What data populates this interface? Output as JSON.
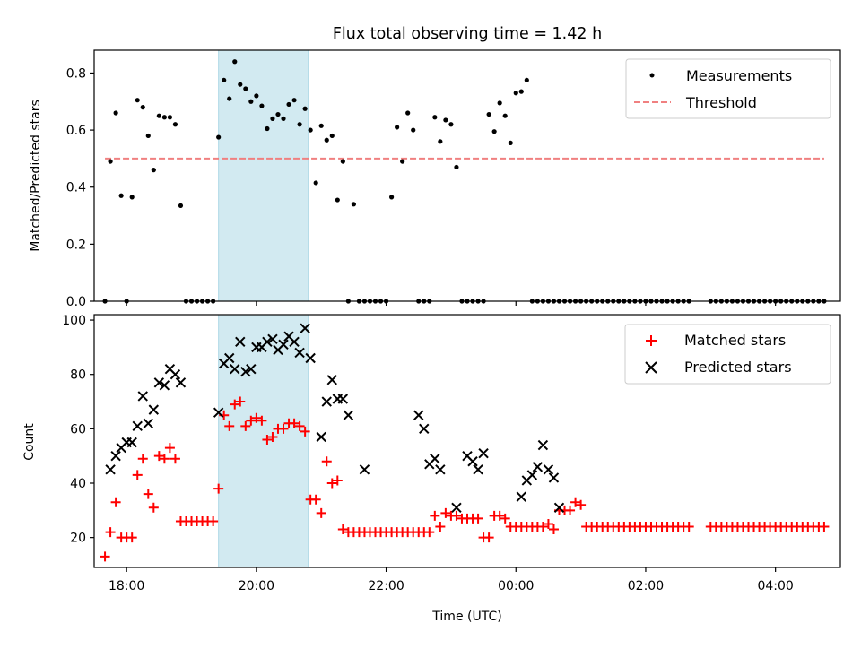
{
  "colors": {
    "measurement": "#000000",
    "threshold": "#f08080",
    "matched": "#ff0000",
    "predicted": "#000000",
    "shade": "#add8e6"
  },
  "chart_data": [
    {
      "type": "scatter",
      "title": "Flux total observing time = 1.42 h",
      "xlabel": "",
      "ylabel": "Matched/Predicted stars",
      "xlim": [
        "17:30",
        "05:00"
      ],
      "ylim": [
        0,
        0.88
      ],
      "yticks": [
        "0.0",
        "0.2",
        "0.4",
        "0.6",
        "0.8"
      ],
      "shaded_interval": [
        "19:25",
        "20:48"
      ],
      "legend_position": "upper right",
      "legend": [
        "Measurements",
        "Threshold"
      ],
      "threshold": {
        "name": "Threshold",
        "value": 0.5,
        "x_range": [
          "17:40",
          "04:45"
        ]
      },
      "series": [
        {
          "name": "Measurements",
          "marker": "dot",
          "x": [
            "17:40",
            "17:45",
            "17:50",
            "17:55",
            "18:00",
            "18:05",
            "18:10",
            "18:15",
            "18:20",
            "18:25",
            "18:30",
            "18:35",
            "18:40",
            "18:45",
            "18:50",
            "18:55",
            "19:00",
            "19:05",
            "19:10",
            "19:15",
            "19:20",
            "19:25",
            "19:30",
            "19:35",
            "19:40",
            "19:45",
            "19:50",
            "19:55",
            "20:00",
            "20:05",
            "20:10",
            "20:15",
            "20:20",
            "20:25",
            "20:30",
            "20:35",
            "20:40",
            "20:45",
            "20:50",
            "20:55",
            "21:00",
            "21:05",
            "21:10",
            "21:15",
            "21:20",
            "21:25",
            "21:30",
            "21:35",
            "21:40",
            "21:45",
            "21:50",
            "21:55",
            "22:00",
            "22:05",
            "22:10",
            "22:15",
            "22:20",
            "22:25",
            "22:30",
            "22:35",
            "22:40",
            "22:45",
            "22:50",
            "22:55",
            "23:00",
            "23:05",
            "23:10",
            "23:15",
            "23:20",
            "23:25",
            "23:30",
            "23:35",
            "23:40",
            "23:45",
            "23:50",
            "23:55",
            "00:00",
            "00:05",
            "00:10",
            "00:15",
            "00:20",
            "00:25",
            "00:30",
            "00:35",
            "00:40",
            "00:45",
            "00:50",
            "00:55",
            "01:00",
            "01:05",
            "01:10",
            "01:15",
            "01:20",
            "01:25",
            "01:30",
            "01:35",
            "01:40",
            "01:45",
            "01:50",
            "01:55",
            "02:00",
            "02:05",
            "02:10",
            "02:15",
            "02:20",
            "02:25",
            "02:30",
            "02:35",
            "02:40",
            "03:00",
            "03:05",
            "03:10",
            "03:15",
            "03:20",
            "03:25",
            "03:30",
            "03:35",
            "03:40",
            "03:45",
            "03:50",
            "03:55",
            "04:00",
            "04:05",
            "04:10",
            "04:15",
            "04:20",
            "04:25",
            "04:30",
            "04:35",
            "04:40",
            "04:45"
          ],
          "y": [
            0.0,
            0.49,
            0.66,
            0.37,
            0.0,
            0.365,
            0.705,
            0.68,
            0.58,
            0.46,
            0.65,
            0.645,
            0.645,
            0.62,
            0.335,
            0.0,
            0.0,
            0.0,
            0.0,
            0.0,
            0.0,
            0.575,
            0.775,
            0.71,
            0.84,
            0.76,
            0.745,
            0.7,
            0.72,
            0.685,
            0.605,
            0.64,
            0.655,
            0.64,
            0.69,
            0.705,
            0.62,
            0.675,
            0.6,
            0.415,
            0.615,
            0.565,
            0.58,
            0.355,
            0.49,
            0.0,
            0.34,
            0.0,
            0.0,
            0.0,
            0.0,
            0.0,
            0.0,
            0.365,
            0.61,
            0.49,
            0.66,
            0.6,
            0.0,
            0.0,
            0.0,
            0.645,
            0.56,
            0.635,
            0.62,
            0.47,
            0.0,
            0.0,
            0.0,
            0.0,
            0.0,
            0.655,
            0.595,
            0.695,
            0.65,
            0.555,
            0.73,
            0.735,
            0.775,
            0.0,
            0.0,
            0.0,
            0.0,
            0.0,
            0.0,
            0.0,
            0.0,
            0.0,
            0.0,
            0.0,
            0.0,
            0.0,
            0.0,
            0.0,
            0.0,
            0.0,
            0.0,
            0.0,
            0.0,
            0.0,
            0.0,
            0.0,
            0.0,
            0.0,
            0.0,
            0.0,
            0.0,
            0.0,
            0.0,
            0.0,
            0.0,
            0.0,
            0.0,
            0.0,
            0.0,
            0.0,
            0.0,
            0.0,
            0.0,
            0.0,
            0.0,
            0.0,
            0.0,
            0.0,
            0.0,
            0.0,
            0.0,
            0.0,
            0.0,
            0.0,
            0.0
          ]
        }
      ]
    },
    {
      "type": "scatter",
      "title": "",
      "xlabel": "Time (UTC)",
      "ylabel": "Count",
      "xlim": [
        "17:30",
        "05:00"
      ],
      "ylim": [
        9,
        102
      ],
      "yticks": [
        "20",
        "40",
        "60",
        "80",
        "100"
      ],
      "xticks": [
        "18:00",
        "20:00",
        "22:00",
        "00:00",
        "02:00",
        "04:00"
      ],
      "shaded_interval": [
        "19:25",
        "20:48"
      ],
      "legend_position": "upper right",
      "legend": [
        "Matched stars",
        "Predicted stars"
      ],
      "series": [
        {
          "name": "Matched stars",
          "marker": "plus",
          "x": [
            "17:40",
            "17:45",
            "17:50",
            "17:55",
            "18:00",
            "18:05",
            "18:10",
            "18:15",
            "18:20",
            "18:25",
            "18:30",
            "18:35",
            "18:40",
            "18:45",
            "18:50",
            "18:55",
            "19:00",
            "19:05",
            "19:10",
            "19:15",
            "19:20",
            "19:25",
            "19:30",
            "19:35",
            "19:40",
            "19:45",
            "19:50",
            "19:55",
            "20:00",
            "20:05",
            "20:10",
            "20:15",
            "20:20",
            "20:25",
            "20:30",
            "20:35",
            "20:40",
            "20:45",
            "20:50",
            "20:55",
            "21:00",
            "21:05",
            "21:10",
            "21:15",
            "21:20",
            "21:25",
            "21:30",
            "21:35",
            "21:40",
            "21:45",
            "21:50",
            "21:55",
            "22:00",
            "22:05",
            "22:10",
            "22:15",
            "22:20",
            "22:25",
            "22:30",
            "22:35",
            "22:40",
            "22:45",
            "22:50",
            "22:55",
            "23:00",
            "23:05",
            "23:10",
            "23:15",
            "23:20",
            "23:25",
            "23:30",
            "23:35",
            "23:40",
            "23:45",
            "23:50",
            "23:55",
            "00:00",
            "00:05",
            "00:10",
            "00:15",
            "00:20",
            "00:25",
            "00:30",
            "00:35",
            "00:40",
            "00:45",
            "00:50",
            "00:55",
            "01:00",
            "01:05",
            "01:10",
            "01:15",
            "01:20",
            "01:25",
            "01:30",
            "01:35",
            "01:40",
            "01:45",
            "01:50",
            "01:55",
            "02:00",
            "02:05",
            "02:10",
            "02:15",
            "02:20",
            "02:25",
            "02:30",
            "02:35",
            "02:40",
            "03:00",
            "03:05",
            "03:10",
            "03:15",
            "03:20",
            "03:25",
            "03:30",
            "03:35",
            "03:40",
            "03:45",
            "03:50",
            "03:55",
            "04:00",
            "04:05",
            "04:10",
            "04:15",
            "04:20",
            "04:25",
            "04:30",
            "04:35",
            "04:40",
            "04:45"
          ],
          "y": [
            13,
            22,
            33,
            20,
            20,
            20,
            43,
            49,
            36,
            31,
            50,
            49,
            53,
            49,
            26,
            26,
            26,
            26,
            26,
            26,
            26,
            38,
            65,
            61,
            69,
            70,
            61,
            63,
            64,
            63,
            56,
            57,
            60,
            60,
            62,
            62,
            61,
            59,
            34,
            34,
            29,
            48,
            40,
            41,
            23,
            22,
            22,
            22,
            22,
            22,
            22,
            22,
            22,
            22,
            22,
            22,
            22,
            22,
            22,
            22,
            22,
            28,
            24,
            29,
            28,
            28,
            27,
            27,
            27,
            27,
            20,
            20,
            28,
            28,
            27,
            24,
            24,
            24,
            24,
            24,
            24,
            24,
            25,
            23,
            30,
            30,
            30,
            33,
            32,
            24,
            24,
            24,
            24,
            24,
            24,
            24,
            24,
            24,
            24,
            24,
            24,
            24,
            24,
            24,
            24,
            24,
            24,
            24,
            24,
            24,
            24,
            24,
            24,
            24,
            24,
            24,
            24,
            24,
            24,
            24,
            24,
            24,
            24,
            24,
            24,
            24,
            24,
            24,
            24,
            24,
            24
          ]
        },
        {
          "name": "Predicted stars",
          "marker": "x",
          "x": [
            "17:45",
            "17:50",
            "17:55",
            "18:00",
            "18:05",
            "18:10",
            "18:15",
            "18:20",
            "18:25",
            "18:30",
            "18:35",
            "18:40",
            "18:45",
            "18:50",
            "19:25",
            "19:30",
            "19:35",
            "19:40",
            "19:45",
            "19:50",
            "19:55",
            "20:00",
            "20:05",
            "20:10",
            "20:15",
            "20:20",
            "20:25",
            "20:30",
            "20:35",
            "20:40",
            "20:45",
            "20:50",
            "21:00",
            "21:05",
            "21:10",
            "21:15",
            "21:20",
            "21:25",
            "21:40",
            "22:30",
            "22:35",
            "22:40",
            "22:45",
            "22:50",
            "23:05",
            "23:15",
            "23:20",
            "23:25",
            "23:30",
            "00:05",
            "00:10",
            "00:15",
            "00:20",
            "00:25",
            "00:30",
            "00:35",
            "00:40"
          ],
          "y": [
            45,
            50,
            53,
            55,
            55,
            61,
            72,
            62,
            67,
            77,
            76,
            82,
            80,
            77,
            66,
            84,
            86,
            82,
            92,
            81,
            82,
            90,
            90,
            92,
            93,
            89,
            91,
            94,
            92,
            88,
            97,
            86,
            57,
            70,
            78,
            71,
            71,
            65,
            45,
            65,
            60,
            47,
            49,
            45,
            31,
            50,
            48,
            45,
            51,
            35,
            41,
            43,
            46,
            54,
            45,
            42,
            31
          ]
        }
      ]
    }
  ]
}
